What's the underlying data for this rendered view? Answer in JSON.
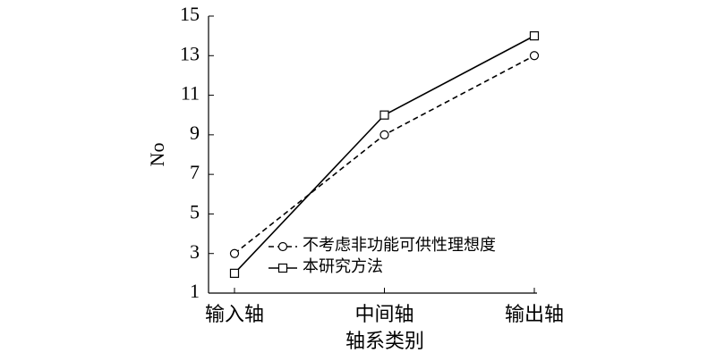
{
  "chart_data": {
    "type": "line",
    "x_label": "轴系类别",
    "y_label": "No",
    "categories": [
      "输入轴",
      "中间轴",
      "输出轴"
    ],
    "series": [
      {
        "name": "不考虑非功能可供性理想度",
        "color": "#000000",
        "dash": true,
        "marker": "circle",
        "values": [
          3,
          9,
          13
        ]
      },
      {
        "name": "本研究方法",
        "color": "#000000",
        "dash": false,
        "marker": "square",
        "values": [
          2,
          10,
          14
        ]
      }
    ],
    "ylim": [
      1,
      15
    ],
    "yticks": [
      1,
      3,
      5,
      7,
      9,
      11,
      13,
      15
    ],
    "grid": false
  }
}
